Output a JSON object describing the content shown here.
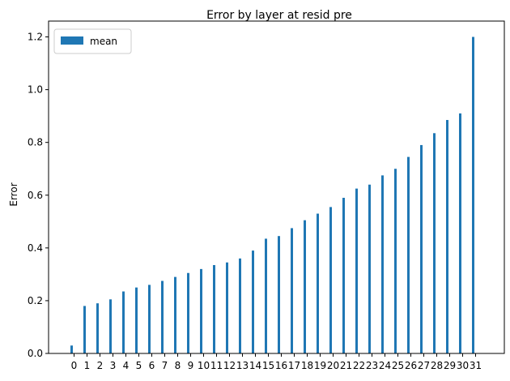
{
  "chart_data": {
    "type": "bar",
    "title": "Error by layer at resid pre",
    "xlabel": "",
    "ylabel": "Error",
    "ylim": [
      0,
      1.26
    ],
    "yticks": [
      0.0,
      0.2,
      0.4,
      0.6,
      0.8,
      1.0,
      1.2
    ],
    "ytick_labels": [
      "0.0",
      "0.2",
      "0.4",
      "0.6",
      "0.8",
      "1.0",
      "1.2"
    ],
    "grid": false,
    "legend_position": "upper-left",
    "categories": [
      "0",
      "1",
      "2",
      "3",
      "4",
      "5",
      "6",
      "7",
      "8",
      "9",
      "10",
      "11",
      "12",
      "13",
      "14",
      "15",
      "16",
      "17",
      "18",
      "19",
      "20",
      "21",
      "22",
      "23",
      "24",
      "25",
      "26",
      "27",
      "28",
      "29",
      "30",
      "31"
    ],
    "series": [
      {
        "name": "mean",
        "color": "#1f77b4",
        "values": [
          0.03,
          0.18,
          0.19,
          0.205,
          0.235,
          0.25,
          0.26,
          0.275,
          0.29,
          0.305,
          0.32,
          0.335,
          0.345,
          0.36,
          0.39,
          0.435,
          0.445,
          0.475,
          0.505,
          0.53,
          0.555,
          0.59,
          0.625,
          0.64,
          0.675,
          0.7,
          0.745,
          0.79,
          0.835,
          0.885,
          0.91,
          1.2
        ]
      }
    ]
  }
}
